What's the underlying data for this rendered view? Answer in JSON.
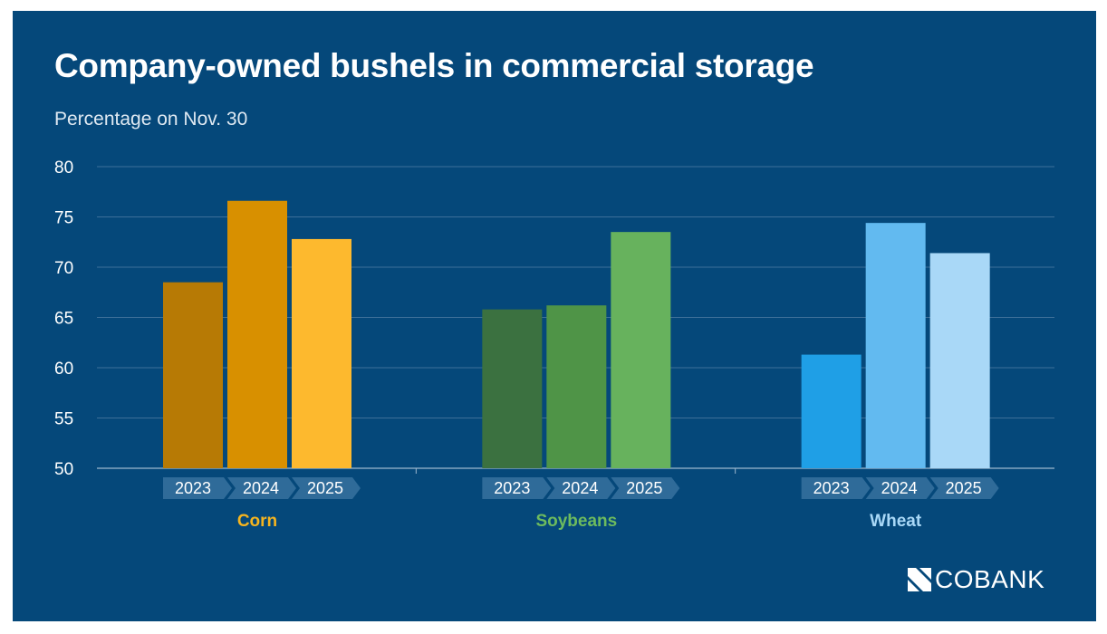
{
  "chart_data": {
    "type": "bar",
    "title": "Company-owned bushels in commercial storage",
    "subtitle": "Percentage on Nov. 30",
    "ylim": [
      50,
      80
    ],
    "yticks": [
      50,
      55,
      60,
      65,
      70,
      75,
      80
    ],
    "grid": true,
    "groups": [
      {
        "name": "Corn",
        "label_color": "#f5b41f",
        "bars": [
          {
            "year": "2023",
            "value": 68.5,
            "color": "#b77a05"
          },
          {
            "year": "2024",
            "value": 76.6,
            "color": "#d89000"
          },
          {
            "year": "2025",
            "value": 72.8,
            "color": "#fdb92e"
          }
        ]
      },
      {
        "name": "Soybeans",
        "label_color": "#6dbb5e",
        "bars": [
          {
            "year": "2023",
            "value": 65.8,
            "color": "#3b7140"
          },
          {
            "year": "2024",
            "value": 66.2,
            "color": "#4f9447"
          },
          {
            "year": "2025",
            "value": 73.5,
            "color": "#67b25d"
          }
        ]
      },
      {
        "name": "Wheat",
        "label_color": "#a9d8f7",
        "bars": [
          {
            "year": "2023",
            "value": 61.3,
            "color": "#1f9fe6"
          },
          {
            "year": "2024",
            "value": 74.4,
            "color": "#62baf0"
          },
          {
            "year": "2025",
            "value": 71.4,
            "color": "#a9d8f7"
          }
        ]
      }
    ]
  },
  "brand": {
    "logo_icon": "cobank-logo-icon",
    "name": "COBANK"
  }
}
